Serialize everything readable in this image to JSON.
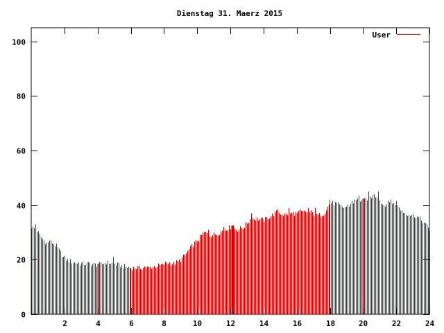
{
  "chart_data": {
    "type": "bar",
    "title": "Dienstag 31. Maerz 2015",
    "xlabel": "",
    "ylabel": "",
    "xlim": [
      0,
      24
    ],
    "ylim": [
      0,
      105
    ],
    "x_ticks": [
      2,
      4,
      6,
      8,
      10,
      12,
      14,
      16,
      18,
      20,
      22,
      24
    ],
    "x_tick_labels": [
      "2",
      "4",
      "6",
      "8",
      "10",
      "12",
      "14",
      "16",
      "18",
      "20",
      "22",
      "24"
    ],
    "y_ticks": [
      0,
      20,
      40,
      60,
      80,
      100
    ],
    "y_tick_labels": [
      "0",
      "20",
      "40",
      "60",
      "80",
      "100"
    ],
    "grid": false,
    "legend": "top-right",
    "series": [
      {
        "name": "User",
        "color": "#cc0000",
        "anchors": [
          [
            0.0,
            32
          ],
          [
            0.3,
            31
          ],
          [
            0.6,
            28
          ],
          [
            0.9,
            26
          ],
          [
            1.2,
            26.5
          ],
          [
            1.5,
            25
          ],
          [
            1.8,
            22
          ],
          [
            2.1,
            20
          ],
          [
            2.5,
            19
          ],
          [
            3.0,
            18.5
          ],
          [
            3.5,
            18.5
          ],
          [
            4.0,
            18
          ],
          [
            4.5,
            19
          ],
          [
            5.0,
            18.5
          ],
          [
            5.5,
            17.5
          ],
          [
            6.0,
            17
          ],
          [
            6.5,
            17
          ],
          [
            7.0,
            17
          ],
          [
            7.4,
            17.5
          ],
          [
            7.8,
            18
          ],
          [
            8.2,
            19
          ],
          [
            8.6,
            18.5
          ],
          [
            9.0,
            20
          ],
          [
            9.3,
            22
          ],
          [
            9.6,
            24.5
          ],
          [
            10.0,
            27
          ],
          [
            10.4,
            30
          ],
          [
            10.8,
            29
          ],
          [
            11.2,
            29.5
          ],
          [
            11.6,
            31
          ],
          [
            12.0,
            32
          ],
          [
            12.4,
            31
          ],
          [
            12.8,
            32
          ],
          [
            13.2,
            35
          ],
          [
            13.6,
            35
          ],
          [
            14.0,
            34.5
          ],
          [
            14.4,
            36
          ],
          [
            14.8,
            37.5
          ],
          [
            15.2,
            36.5
          ],
          [
            15.6,
            37
          ],
          [
            16.0,
            37
          ],
          [
            16.4,
            37.5
          ],
          [
            16.8,
            37.5
          ],
          [
            17.2,
            36
          ],
          [
            17.6,
            37
          ],
          [
            18.0,
            41
          ],
          [
            18.4,
            40.5
          ],
          [
            18.8,
            39
          ],
          [
            19.2,
            40
          ],
          [
            19.6,
            42
          ],
          [
            20.0,
            41.5
          ],
          [
            20.4,
            43
          ],
          [
            20.8,
            43.5
          ],
          [
            21.2,
            40
          ],
          [
            21.6,
            41
          ],
          [
            22.0,
            40
          ],
          [
            22.4,
            37.5
          ],
          [
            22.8,
            36.5
          ],
          [
            23.2,
            36
          ],
          [
            23.6,
            34
          ],
          [
            24.0,
            31
          ]
        ],
        "bar_step_hours": 0.0833333,
        "spikes": [
          [
            0.25,
            33
          ],
          [
            1.05,
            27
          ],
          [
            1.95,
            21
          ],
          [
            2.85,
            19
          ],
          [
            4.0,
            18.5
          ],
          [
            4.9,
            21
          ],
          [
            6.8,
            17.5
          ],
          [
            7.9,
            18.5
          ],
          [
            9.55,
            25
          ],
          [
            10.25,
            29
          ],
          [
            10.7,
            31
          ],
          [
            11.55,
            32
          ],
          [
            12.05,
            32.5
          ],
          [
            12.15,
            32.5
          ],
          [
            13.25,
            37
          ],
          [
            14.8,
            38.5
          ],
          [
            15.5,
            39
          ],
          [
            16.2,
            38.5
          ],
          [
            16.65,
            39
          ],
          [
            17.1,
            39
          ],
          [
            18.0,
            42
          ],
          [
            19.3,
            41.5
          ],
          [
            19.75,
            43.5
          ],
          [
            20.35,
            45
          ],
          [
            20.65,
            44
          ],
          [
            20.9,
            45
          ],
          [
            21.7,
            42
          ],
          [
            22.0,
            41.5
          ]
        ],
        "emphasized_bars": [
          4.0,
          12.05,
          12.15,
          20.0
        ]
      }
    ]
  }
}
